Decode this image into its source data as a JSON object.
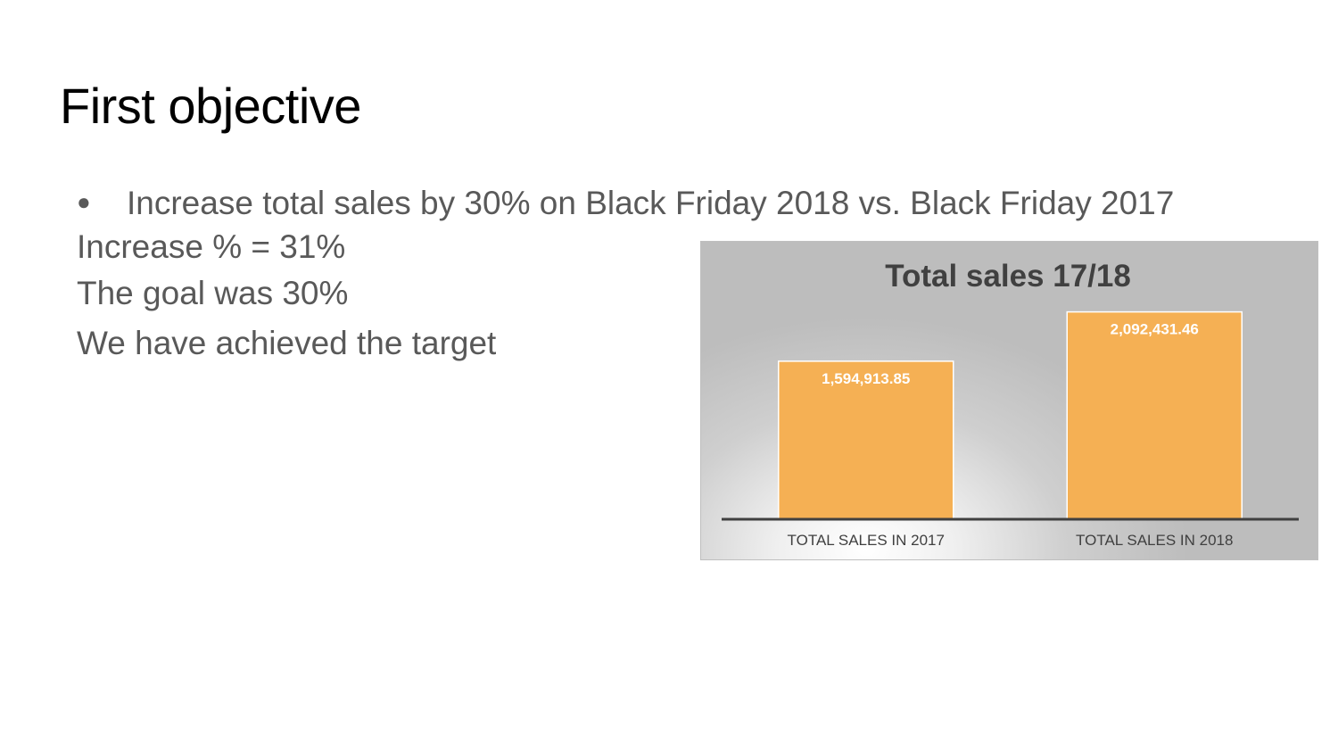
{
  "slide": {
    "title": "First objective",
    "bullet": "Increase total sales by 30% on Black Friday 2018 vs. Black Friday 2017",
    "lines": [
      "Increase % = 31%",
      "The goal was 30%",
      "We have achieved the target"
    ]
  },
  "chart_data": {
    "type": "bar",
    "title": "Total sales 17/18",
    "categories": [
      "TOTAL SALES IN 2017",
      "TOTAL SALES IN 2018"
    ],
    "values": [
      1594913.85,
      2092431.46
    ],
    "data_labels": [
      "1,594,913.85",
      "2,092,431.46"
    ],
    "xlabel": "",
    "ylabel": "",
    "ylim": [
      0,
      2800000
    ],
    "grid": false,
    "legend": "none",
    "colors": {
      "bar": "#F5B054",
      "bar_outline": "#ffffff",
      "axis": "#404040",
      "title": "#404040",
      "tick_label": "#404040",
      "data_label": "#ffffff"
    }
  }
}
